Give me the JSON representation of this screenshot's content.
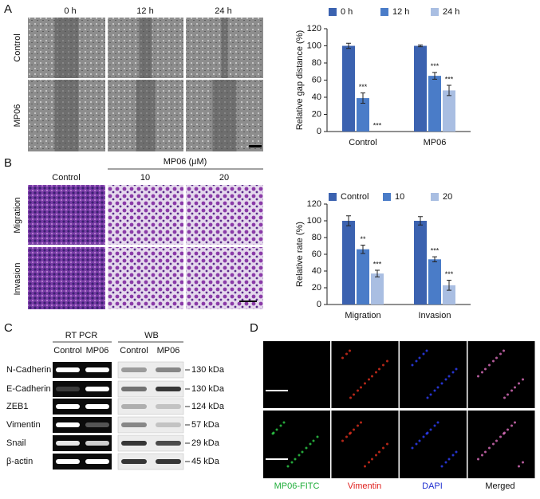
{
  "panels": {
    "a": {
      "letter": "A",
      "columns": [
        "0 h",
        "12 h",
        "24 h"
      ],
      "rows": [
        "Control",
        "MP06"
      ]
    },
    "b": {
      "letter": "B",
      "group_label": "MP06 (μM)",
      "columns": [
        "Control",
        "10",
        "20"
      ],
      "rows": [
        "Migration",
        "Invasion"
      ]
    },
    "c": {
      "letter": "C",
      "methods": [
        "RT PCR",
        "WB"
      ],
      "lanes": [
        "Control",
        "MP06",
        "Control",
        "MP06"
      ],
      "proteins": [
        "N-Cadherin",
        "E-Cadherin",
        "ZEB1",
        "Vimentin",
        "Snail",
        "β-actin"
      ],
      "sizes": [
        "130 kDa",
        "130 kDa",
        "124 kDa",
        "57 kDa",
        "29 kDa",
        "45 kDa"
      ]
    },
    "d": {
      "letter": "D",
      "channels": [
        "MP06-FITC",
        "Vimentin",
        "DAPI",
        "Merged"
      ]
    }
  },
  "chart_data": [
    {
      "type": "bar",
      "y_label": "Relative gap distance (%)",
      "categories": [
        "Control",
        "MP06"
      ],
      "series": [
        {
          "name": "0 h",
          "color": "#3b62b0",
          "values": [
            100,
            100
          ],
          "errors": [
            3,
            1
          ],
          "significance": [
            null,
            null
          ]
        },
        {
          "name": "12 h",
          "color": "#4a7cc8",
          "values": [
            39,
            65
          ],
          "errors": [
            6,
            4
          ],
          "significance": [
            "***",
            "***"
          ]
        },
        {
          "name": "24 h",
          "color": "#a9bee2",
          "values": [
            0,
            48
          ],
          "errors": [
            0,
            6
          ],
          "significance": [
            "***",
            "***"
          ]
        }
      ],
      "ylim": [
        0,
        120
      ],
      "yticks": [
        0,
        20,
        40,
        60,
        80,
        100,
        120
      ]
    },
    {
      "type": "bar",
      "y_label": "Relative rate (%)",
      "categories": [
        "Migration",
        "Invasion"
      ],
      "series": [
        {
          "name": "Control",
          "color": "#3b62b0",
          "values": [
            100,
            100
          ],
          "errors": [
            6,
            5
          ],
          "significance": [
            null,
            null
          ]
        },
        {
          "name": "10",
          "color": "#4a7cc8",
          "values": [
            66,
            54
          ],
          "errors": [
            5,
            3
          ],
          "significance": [
            "**",
            "***"
          ]
        },
        {
          "name": "20",
          "color": "#a9bee2",
          "values": [
            37,
            23
          ],
          "errors": [
            4,
            6
          ],
          "significance": [
            "***",
            "***"
          ]
        }
      ],
      "ylim": [
        0,
        120
      ],
      "yticks": [
        0,
        20,
        40,
        60,
        80,
        100,
        120
      ]
    }
  ]
}
